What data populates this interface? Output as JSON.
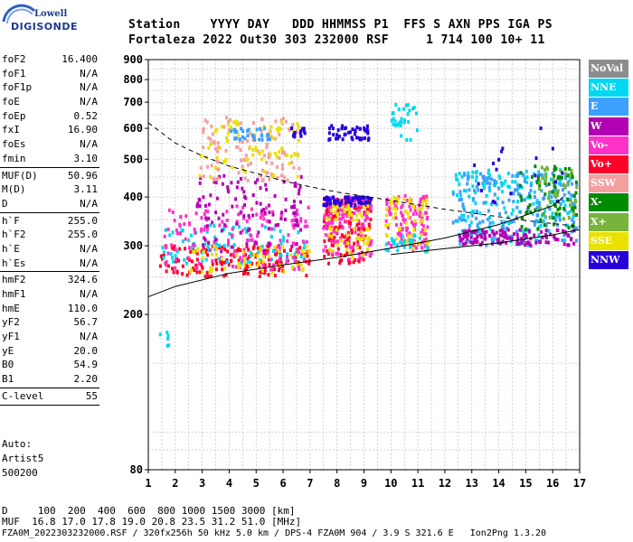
{
  "logo": {
    "line1": "Lowell",
    "line2": "DIGISONDE"
  },
  "header": {
    "labels": "Station    YYYY DAY   DDD HHMMSS P1  FFS S AXN PPS IGA PS",
    "values": "Fortaleza 2022 Out30 303 232000 RSF     1 714 100 10+ 11"
  },
  "params": {
    "group1": [
      {
        "k": "foF2",
        "v": "16.400"
      },
      {
        "k": "foF1",
        "v": "N/A"
      },
      {
        "k": "foF1p",
        "v": "N/A"
      },
      {
        "k": "foE",
        "v": "N/A"
      },
      {
        "k": "foEp",
        "v": "0.52"
      },
      {
        "k": "fxI",
        "v": "16.90"
      },
      {
        "k": "foEs",
        "v": "N/A"
      },
      {
        "k": "fmin",
        "v": "3.10"
      }
    ],
    "group2": [
      {
        "k": "MUF(D)",
        "v": "50.96"
      },
      {
        "k": "M(D)",
        "v": "3.11"
      },
      {
        "k": "D",
        "v": "N/A"
      }
    ],
    "group3": [
      {
        "k": "h`F",
        "v": "255.0"
      },
      {
        "k": "h`F2",
        "v": "255.0"
      },
      {
        "k": "h`E",
        "v": "N/A"
      },
      {
        "k": "h`Es",
        "v": "N/A"
      }
    ],
    "group4": [
      {
        "k": "hmF2",
        "v": "324.6"
      },
      {
        "k": "hmF1",
        "v": "N/A"
      },
      {
        "k": "hmE",
        "v": "110.0"
      },
      {
        "k": "yF2",
        "v": "56.7"
      },
      {
        "k": "yF1",
        "v": "N/A"
      },
      {
        "k": "yE",
        "v": "20.0"
      },
      {
        "k": "B0",
        "v": "54.9"
      },
      {
        "k": "B1",
        "v": "2.20"
      }
    ],
    "group5": [
      {
        "k": "C-level",
        "v": "55"
      }
    ]
  },
  "auto": {
    "line1": "Auto:",
    "line2": "Artist5",
    "line3": "500200"
  },
  "legend": [
    {
      "label": "NoVal",
      "color": "#8c8c8c"
    },
    {
      "label": "NNE",
      "color": "#00d7f0"
    },
    {
      "label": "E",
      "color": "#3ca0ff"
    },
    {
      "label": "W",
      "color": "#b400b4"
    },
    {
      "label": "Vo-",
      "color": "#ff32c8"
    },
    {
      "label": "Vo+",
      "color": "#ff0028"
    },
    {
      "label": "SSW",
      "color": "#f5a0a0"
    },
    {
      "label": "X-",
      "color": "#008c00"
    },
    {
      "label": "X+",
      "color": "#78b43c"
    },
    {
      "label": "SSE",
      "color": "#ebe100"
    },
    {
      "label": "NNW",
      "color": "#2800dc"
    }
  ],
  "footer": {
    "line1": "D     100  200  400  600  800 1000 1500 3000 [km]",
    "line2": "MUF  16.8 17.0 17.8 19.0 20.8 23.5 31.2 51.0 [MHz]",
    "line3": "FZA0M_2022303232000.RSF / 320fx256h 50 kHz 5.0 km / DPS-4 FZA0M 904 / 3.9 S 321.6 E   Ion2Png 1.3.20"
  },
  "chart_data": {
    "type": "scatter",
    "title": "",
    "xlabel": "",
    "ylabel": "",
    "xlim": [
      1,
      17
    ],
    "ylim": [
      80,
      900
    ],
    "xticks": [
      1,
      2,
      3,
      4,
      5,
      6,
      7,
      8,
      9,
      10,
      11,
      12,
      13,
      14,
      15,
      16,
      17
    ],
    "yticks": [
      80,
      200,
      300,
      400,
      500,
      600,
      700,
      800,
      900
    ],
    "y_scale": "log",
    "grid_x_minor": 0.5,
    "grid_y_minor": [
      90,
      100,
      150,
      250,
      350,
      450,
      550,
      650,
      750,
      850
    ],
    "clusters": [
      {
        "f": [
          1.35,
          1.9
        ],
        "h": [
          160,
          180
        ],
        "color": "#00d7f0",
        "n": 6
      },
      {
        "f": [
          1.4,
          7.0
        ],
        "h": [
          250,
          300
        ],
        "color": "#ff0028",
        "n": 170
      },
      {
        "f": [
          1.5,
          7.0
        ],
        "h": [
          270,
          340
        ],
        "color": "#00d7f0",
        "n": 90
      },
      {
        "f": [
          1.6,
          7.0
        ],
        "h": [
          260,
          380
        ],
        "color": "#ff32c8",
        "n": 150
      },
      {
        "f": [
          2.5,
          7.0
        ],
        "h": [
          255,
          300
        ],
        "color": "#ebe100",
        "n": 60
      },
      {
        "f": [
          2.8,
          6.8
        ],
        "h": [
          290,
          460
        ],
        "color": "#b400b4",
        "n": 110
      },
      {
        "f": [
          2.9,
          6.6
        ],
        "h": [
          440,
          640
        ],
        "color": "#f5a0a0",
        "n": 110
      },
      {
        "f": [
          2.9,
          6.6
        ],
        "h": [
          450,
          640
        ],
        "color": "#ebe100",
        "n": 70
      },
      {
        "f": [
          4.0,
          5.6
        ],
        "h": [
          560,
          600
        ],
        "color": "#3ca0ff",
        "n": 30
      },
      {
        "f": [
          6.2,
          6.9
        ],
        "h": [
          570,
          600
        ],
        "color": "#2800dc",
        "n": 14
      },
      {
        "f": [
          7.5,
          9.3
        ],
        "h": [
          270,
          400
        ],
        "color": "#ff0028",
        "n": 140
      },
      {
        "f": [
          7.5,
          9.3
        ],
        "h": [
          275,
          400
        ],
        "color": "#ff32c8",
        "n": 110
      },
      {
        "f": [
          7.5,
          9.3
        ],
        "h": [
          380,
          400
        ],
        "color": "#2800dc",
        "n": 60
      },
      {
        "f": [
          7.6,
          9.2
        ],
        "h": [
          560,
          610
        ],
        "color": "#2800dc",
        "n": 45
      },
      {
        "f": [
          7.6,
          9.2
        ],
        "h": [
          280,
          380
        ],
        "color": "#ebe100",
        "n": 60
      },
      {
        "f": [
          9.8,
          11.4
        ],
        "h": [
          290,
          405
        ],
        "color": "#ff32c8",
        "n": 110
      },
      {
        "f": [
          9.8,
          11.4
        ],
        "h": [
          290,
          400
        ],
        "color": "#ebe100",
        "n": 60
      },
      {
        "f": [
          9.8,
          11.4
        ],
        "h": [
          290,
          320
        ],
        "color": "#00d7f0",
        "n": 30
      },
      {
        "f": [
          10.0,
          11.0
        ],
        "h": [
          560,
          690
        ],
        "color": "#00d7f0",
        "n": 30
      },
      {
        "f": [
          12.3,
          16.9
        ],
        "h": [
          300,
          470
        ],
        "color": "#00d7f0",
        "n": 180
      },
      {
        "f": [
          12.3,
          16.9
        ],
        "h": [
          300,
          460
        ],
        "color": "#3ca0ff",
        "n": 180
      },
      {
        "f": [
          12.5,
          16.9
        ],
        "h": [
          300,
          330
        ],
        "color": "#b400b4",
        "n": 120
      },
      {
        "f": [
          14.8,
          16.9
        ],
        "h": [
          330,
          480
        ],
        "color": "#008c00",
        "n": 70
      },
      {
        "f": [
          15.5,
          16.9
        ],
        "h": [
          350,
          480
        ],
        "color": "#78b43c",
        "n": 40
      },
      {
        "f": [
          13.0,
          16.5
        ],
        "h": [
          380,
          600
        ],
        "color": "#2800dc",
        "n": 18
      }
    ],
    "curves": [
      {
        "name": "",
        "style": "dashed",
        "f": [
          1,
          2,
          3,
          4,
          5,
          6,
          7,
          8,
          9,
          10,
          11,
          12,
          13,
          14,
          15,
          16,
          17
        ],
        "h": [
          620,
          550,
          510,
          480,
          460,
          440,
          425,
          412,
          402,
          392,
          382,
          372,
          364,
          356,
          348,
          342,
          336
        ]
      },
      {
        "name": "",
        "style": "solid",
        "f": [
          1.0,
          2.0,
          4.0,
          6.0,
          8.0,
          10.0,
          12.0,
          14.0,
          16.0,
          16.4
        ],
        "h": [
          222,
          236,
          255,
          268,
          280,
          296,
          314,
          340,
          380,
          400
        ]
      },
      {
        "name": "",
        "style": "solid",
        "f": [
          10.0,
          12.0,
          14.0,
          16.0,
          17.0
        ],
        "h": [
          285,
          295,
          305,
          320,
          330
        ]
      }
    ]
  }
}
